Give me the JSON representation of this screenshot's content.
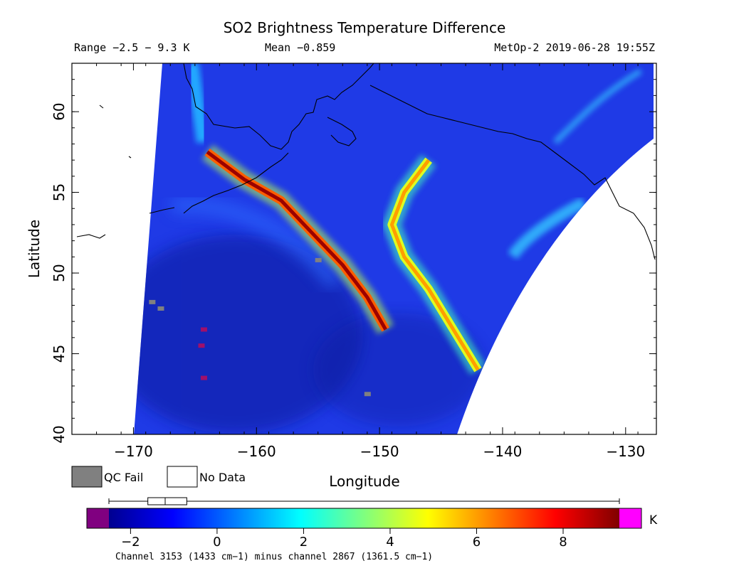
{
  "chart_data": {
    "type": "heatmap",
    "title": "SO2 Brightness Temperature Difference",
    "header": {
      "range": "Range −2.5 − 9.3 K",
      "mean": "Mean −0.859",
      "satellite": "MetOp-2 2019-06-28 19:55Z"
    },
    "xlabel": "Longitude",
    "ylabel": "Latitude",
    "xlim": [
      -175,
      -127.5
    ],
    "ylim": [
      40,
      63
    ],
    "x_ticks": [
      -170,
      -160,
      -150,
      -140,
      -130
    ],
    "x_tick_labels": [
      "−170",
      "−160",
      "−150",
      "−140",
      "−130"
    ],
    "y_ticks": [
      40,
      45,
      50,
      55,
      60
    ],
    "y_tick_labels": [
      "40",
      "45",
      "50",
      "55",
      "60"
    ],
    "legend": [
      {
        "label": "QC Fail",
        "color": "#808080"
      },
      {
        "label": "No Data",
        "color": "#ffffff"
      }
    ],
    "colorbar": {
      "unit": "K",
      "min": -2.5,
      "max": 9.3,
      "ticks": [
        -2,
        0,
        2,
        4,
        6,
        8
      ],
      "tick_labels": [
        "−2",
        "0",
        "2",
        "4",
        "6",
        "8"
      ],
      "under_color": "#800080",
      "over_color": "#ff00ff",
      "box": {
        "whisker_low": -2.5,
        "q1": -1.6,
        "median": -1.2,
        "q3": -0.7,
        "whisker_high": 9.3
      }
    },
    "channel_note": "Channel 3153 (1433 cm−1) minus channel 2867 (1361.5 cm−1)",
    "plumes": [
      {
        "name": "volcanic-plume",
        "points": [
          [
            -164,
            57.5
          ],
          [
            -161,
            55.8
          ],
          [
            -158,
            54.5
          ],
          [
            -155.5,
            52.5
          ],
          [
            -153,
            50.5
          ],
          [
            -151,
            48.5
          ],
          [
            -149.5,
            46.5
          ]
        ],
        "peak": 9.0
      },
      {
        "name": "curved-arc",
        "points": [
          [
            -146,
            57
          ],
          [
            -148,
            55
          ],
          [
            -149,
            53
          ],
          [
            -148,
            51
          ],
          [
            -146,
            49
          ],
          [
            -144,
            46.5
          ],
          [
            -142,
            44
          ]
        ],
        "peak": 6.0
      }
    ],
    "qc_fail_pixels": [
      [
        -168.5,
        48.2
      ],
      [
        -167.8,
        47.8
      ],
      [
        -155,
        50.8
      ],
      [
        -151,
        42.5
      ]
    ],
    "extreme_low_pixels": [
      [
        -164.3,
        46.5
      ],
      [
        -164.5,
        45.5
      ],
      [
        -164.3,
        43.5
      ]
    ]
  }
}
